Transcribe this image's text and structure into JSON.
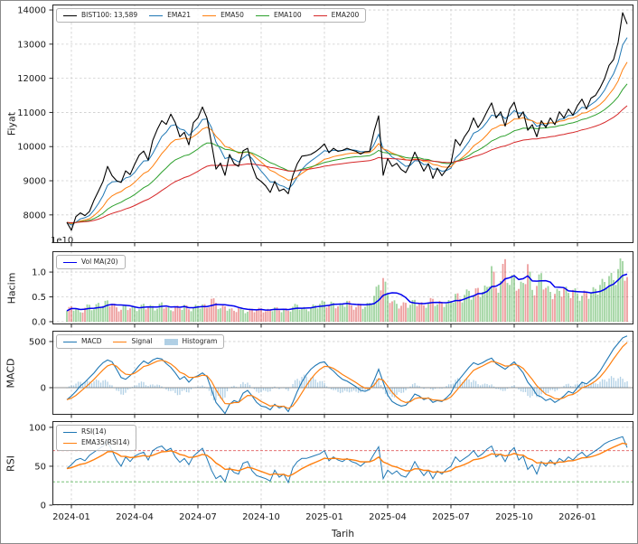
{
  "colors": {
    "price_line": "#000000",
    "ema21": "#1f77b4",
    "ema50": "#ff7f0e",
    "ema100": "#2ca02c",
    "ema200": "#d62728",
    "vol_ma": "#0000ee",
    "vol_up": "#2ca02c",
    "vol_down": "#d62728",
    "macd_line": "#1f77b4",
    "signal_line": "#ff7f0e",
    "histogram": "rgba(31,119,180,0.35)",
    "rsi_line": "#1f77b4",
    "rsi_ema_line": "#ff7f0e",
    "overbought": "rgba(214,39,40,0.75)",
    "oversold": "rgba(44,160,44,0.75)",
    "grid": "#cdcdcd",
    "zero_line": "#8c8c8c"
  },
  "chart_data": {
    "type": "line",
    "x_axis": {
      "label": "Tarih",
      "ticks": [
        {
          "i": 1,
          "label": "2024-01"
        },
        {
          "i": 15,
          "label": "2024-04"
        },
        {
          "i": 29,
          "label": "2024-07"
        },
        {
          "i": 43,
          "label": "2024-10"
        },
        {
          "i": 57,
          "label": "2025-01"
        },
        {
          "i": 71,
          "label": "2025-04"
        },
        {
          "i": 85,
          "label": "2025-07"
        },
        {
          "i": 99,
          "label": "2025-10"
        },
        {
          "i": 113,
          "label": "2026-01"
        }
      ]
    },
    "panels": [
      {
        "id": "price",
        "ylabel": "Fiyat",
        "ylim": [
          7175,
          14160
        ],
        "yticks": [
          8000,
          9000,
          10000,
          11000,
          12000,
          13000,
          14000
        ],
        "legend": [
          {
            "label": "BIST100: 13,589",
            "color": "#000000",
            "type": "line"
          },
          {
            "label": "EMA21",
            "color": "#1f77b4",
            "type": "line"
          },
          {
            "label": "EMA50",
            "color": "#ff7f0e",
            "type": "line"
          },
          {
            "label": "EMA100",
            "color": "#2ca02c",
            "type": "line"
          },
          {
            "label": "EMA200",
            "color": "#d62728",
            "type": "line"
          }
        ],
        "series_name": "BIST100",
        "last_value_label": "13,589",
        "emas": [
          {
            "label": "EMA21",
            "period": 21,
            "color": "#1f77b4"
          },
          {
            "label": "EMA50",
            "period": 50,
            "color": "#ff7f0e"
          },
          {
            "label": "EMA100",
            "period": 100,
            "color": "#2ca02c"
          },
          {
            "label": "EMA200",
            "period": 200,
            "color": "#d62728"
          }
        ],
        "values": [
          7780,
          7550,
          7950,
          8060,
          7980,
          8100,
          8430,
          8700,
          8980,
          9420,
          9150,
          9000,
          8950,
          9290,
          9180,
          9480,
          9750,
          9870,
          9600,
          10180,
          10500,
          10760,
          10650,
          10950,
          10700,
          10290,
          10420,
          10050,
          10700,
          10840,
          11160,
          10840,
          10100,
          9340,
          9520,
          9160,
          9770,
          9500,
          9420,
          9880,
          9950,
          9430,
          9080,
          8980,
          8850,
          8660,
          8980,
          8700,
          8760,
          8620,
          9150,
          9500,
          9720,
          9740,
          9770,
          9850,
          9950,
          10080,
          9820,
          9950,
          9860,
          9890,
          9950,
          9900,
          9860,
          9780,
          9850,
          9860,
          10450,
          10900,
          9160,
          9650,
          9420,
          9510,
          9330,
          9240,
          9500,
          9840,
          9560,
          9280,
          9500,
          9070,
          9370,
          9150,
          9330,
          9500,
          10210,
          10030,
          10290,
          10480,
          10840,
          10560,
          10760,
          11030,
          11280,
          10840,
          11020,
          10600,
          11100,
          11300,
          10840,
          11020,
          10480,
          10640,
          10290,
          10760,
          10560,
          10840,
          10640,
          11020,
          10840,
          11100,
          10920,
          11200,
          11390,
          11100,
          11420,
          11500,
          11720,
          11990,
          12380,
          12550,
          13050,
          13920,
          13589
        ]
      },
      {
        "id": "volume",
        "ylabel": "Hacim",
        "offset_text": "1e10",
        "ylim_1e9": [
          -0.55,
          14.2
        ],
        "yticks_1e9": [
          0,
          5,
          10
        ],
        "ytick_labels": [
          "0.0",
          "0.5",
          "1.0"
        ],
        "legend": [
          {
            "label": "Vol MA(20)",
            "color": "#0000ee",
            "type": "line"
          }
        ],
        "ma_window": 6,
        "bars_1e9": [
          2.2,
          3.1,
          2.6,
          1.9,
          2.8,
          3.4,
          2.5,
          3.8,
          3.2,
          4.3,
          3.6,
          2.9,
          2.4,
          3.3,
          2.7,
          3.0,
          2.5,
          3.6,
          2.8,
          3.2,
          2.6,
          3.9,
          2.9,
          2.3,
          3.1,
          2.7,
          3.4,
          2.5,
          2.9,
          3.2,
          3.5,
          2.8,
          4.6,
          3.8,
          2.7,
          3.1,
          2.6,
          2.2,
          2.8,
          2.4,
          2.0,
          2.6,
          2.3,
          2.7,
          2.1,
          2.5,
          2.9,
          2.3,
          2.6,
          2.2,
          3.0,
          3.4,
          2.8,
          2.5,
          2.9,
          3.3,
          3.6,
          4.0,
          3.4,
          3.8,
          3.1,
          3.5,
          4.2,
          3.3,
          2.9,
          3.6,
          3.0,
          3.8,
          5.2,
          7.4,
          8.8,
          5.6,
          4.1,
          3.6,
          3.2,
          3.8,
          3.4,
          4.4,
          3.7,
          3.3,
          3.9,
          4.6,
          3.5,
          4.0,
          3.6,
          4.2,
          5.6,
          4.6,
          5.4,
          6.2,
          5.2,
          6.8,
          6.0,
          7.0,
          11.2,
          6.8,
          8.2,
          12.6,
          7.4,
          9.4,
          6.6,
          7.8,
          11.6,
          6.4,
          7.2,
          9.8,
          6.8,
          6.0,
          5.6,
          6.2,
          6.8,
          5.8,
          6.4,
          5.6,
          5.2,
          6.0,
          5.8,
          6.6,
          7.4,
          8.0,
          9.2,
          8.4,
          10.6,
          12.2,
          9.0
        ]
      },
      {
        "id": "macd",
        "ylabel": "MACD",
        "ylim": [
          -294,
          617
        ],
        "yticks": [
          0,
          500
        ],
        "legend": [
          {
            "label": "MACD",
            "color": "#1f77b4",
            "type": "line"
          },
          {
            "label": "Signal",
            "color": "#ff7f0e",
            "type": "line"
          },
          {
            "label": "Histogram",
            "color": "rgba(31,119,180,0.35)",
            "type": "patch"
          }
        ],
        "signal_span": 4,
        "macd": [
          -130,
          -90,
          -40,
          20,
          60,
          110,
          160,
          220,
          270,
          300,
          280,
          200,
          110,
          90,
          130,
          180,
          240,
          290,
          260,
          300,
          320,
          310,
          260,
          220,
          160,
          90,
          120,
          60,
          110,
          130,
          160,
          120,
          -20,
          -160,
          -220,
          -280,
          -180,
          -140,
          -160,
          -60,
          -30,
          -90,
          -160,
          -200,
          -210,
          -240,
          -180,
          -220,
          -200,
          -260,
          -160,
          -40,
          60,
          140,
          200,
          240,
          270,
          280,
          220,
          180,
          130,
          90,
          70,
          40,
          10,
          -30,
          -40,
          -20,
          80,
          200,
          60,
          -80,
          -150,
          -180,
          -200,
          -190,
          -140,
          -70,
          -90,
          -130,
          -110,
          -160,
          -140,
          -150,
          -110,
          -60,
          40,
          100,
          160,
          220,
          270,
          250,
          270,
          300,
          320,
          260,
          230,
          200,
          240,
          280,
          220,
          160,
          60,
          0,
          -80,
          -100,
          -140,
          -120,
          -160,
          -130,
          -90,
          -40,
          -60,
          0,
          60,
          40,
          80,
          120,
          180,
          260,
          340,
          420,
          480,
          540,
          560
        ]
      },
      {
        "id": "rsi",
        "ylabel": "RSI",
        "ylim": [
          0,
          108
        ],
        "yticks": [
          0,
          50,
          100
        ],
        "legend": [
          {
            "label": "RSI(14)",
            "color": "#1f77b4",
            "type": "line"
          },
          {
            "label": "EMA35(RSI14)",
            "color": "#ff7f0e",
            "type": "line"
          }
        ],
        "ema_span": 8,
        "levels": {
          "overbought": 70,
          "oversold": 30
        },
        "rsi": [
          47,
          52,
          58,
          60,
          57,
          64,
          68,
          72,
          76,
          82,
          70,
          58,
          50,
          62,
          56,
          63,
          66,
          68,
          58,
          70,
          74,
          76,
          70,
          73,
          62,
          55,
          60,
          52,
          63,
          68,
          73,
          60,
          45,
          34,
          38,
          30,
          48,
          42,
          40,
          54,
          56,
          44,
          38,
          36,
          34,
          31,
          45,
          36,
          40,
          29,
          48,
          56,
          60,
          60,
          62,
          64,
          66,
          70,
          57,
          62,
          58,
          56,
          60,
          56,
          54,
          50,
          55,
          56,
          66,
          75,
          34,
          45,
          40,
          44,
          38,
          36,
          44,
          56,
          46,
          38,
          45,
          34,
          44,
          40,
          46,
          50,
          62,
          56,
          60,
          64,
          70,
          62,
          66,
          72,
          76,
          62,
          66,
          56,
          68,
          74,
          58,
          63,
          46,
          52,
          40,
          56,
          50,
          58,
          52,
          60,
          56,
          62,
          58,
          64,
          68,
          62,
          66,
          70,
          74,
          79,
          82,
          84,
          86,
          88,
          74
        ]
      }
    ]
  }
}
